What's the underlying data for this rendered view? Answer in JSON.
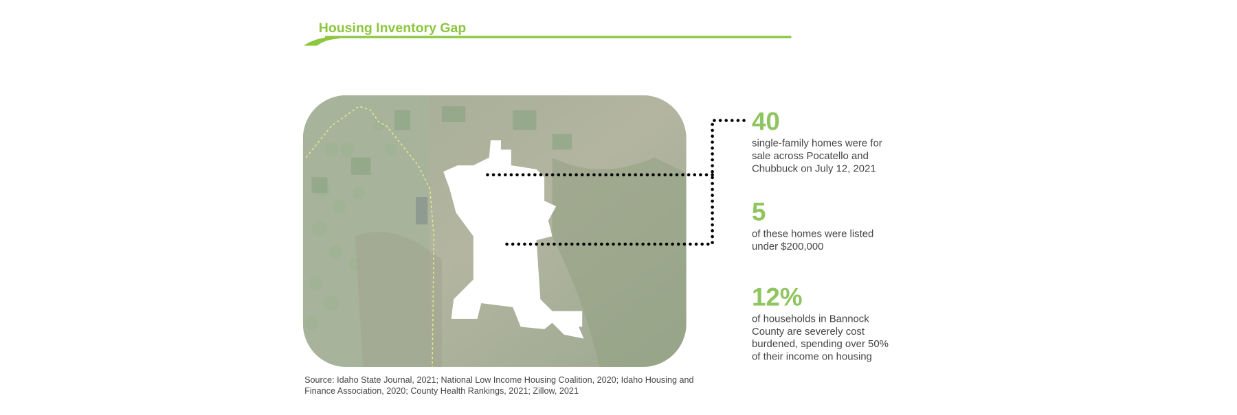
{
  "header": {
    "title": "Housing Inventory Gap"
  },
  "stats": [
    {
      "value": "40",
      "lines": [
        "single-family homes were for",
        "sale across Pocatello and",
        "Chubbuck on July 12, 2021"
      ]
    },
    {
      "value": "5",
      "lines": [
        "of these homes were listed",
        "under $200,000"
      ]
    },
    {
      "value": "12%",
      "lines": [
        "of households in Bannock",
        "County are severely cost",
        "burdened, spending over 50%",
        "of their income on housing"
      ]
    }
  ],
  "source": {
    "lines": [
      "Source: Idaho State Journal, 2021; National Low Income Housing Coalition, 2020; Idaho Housing and",
      "Finance Association, 2020; County Health Rankings, 2021; Zillow, 2021"
    ]
  }
}
